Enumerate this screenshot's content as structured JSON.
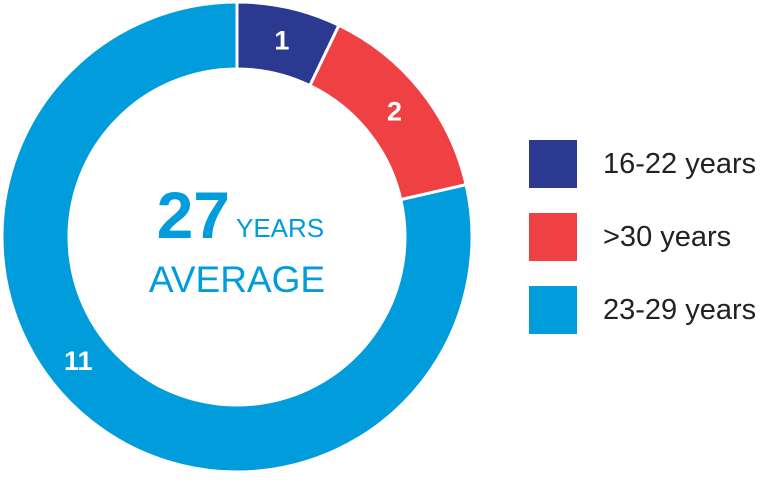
{
  "chart_data": {
    "type": "pie",
    "donut": true,
    "slices": [
      {
        "name": "16-22 years",
        "value": 1,
        "label": "1",
        "color": "#2b3990"
      },
      {
        "name": ">30 years",
        "value": 2,
        "label": "2",
        "color": "#ef4043"
      },
      {
        "name": "23-29 years",
        "value": 11,
        "label": "11",
        "color": "#019cdc"
      }
    ],
    "center_text": {
      "number": "27",
      "unit": "YEARS",
      "caption": "AVERAGE",
      "color": "#019cdc"
    },
    "legend_position": "right"
  }
}
